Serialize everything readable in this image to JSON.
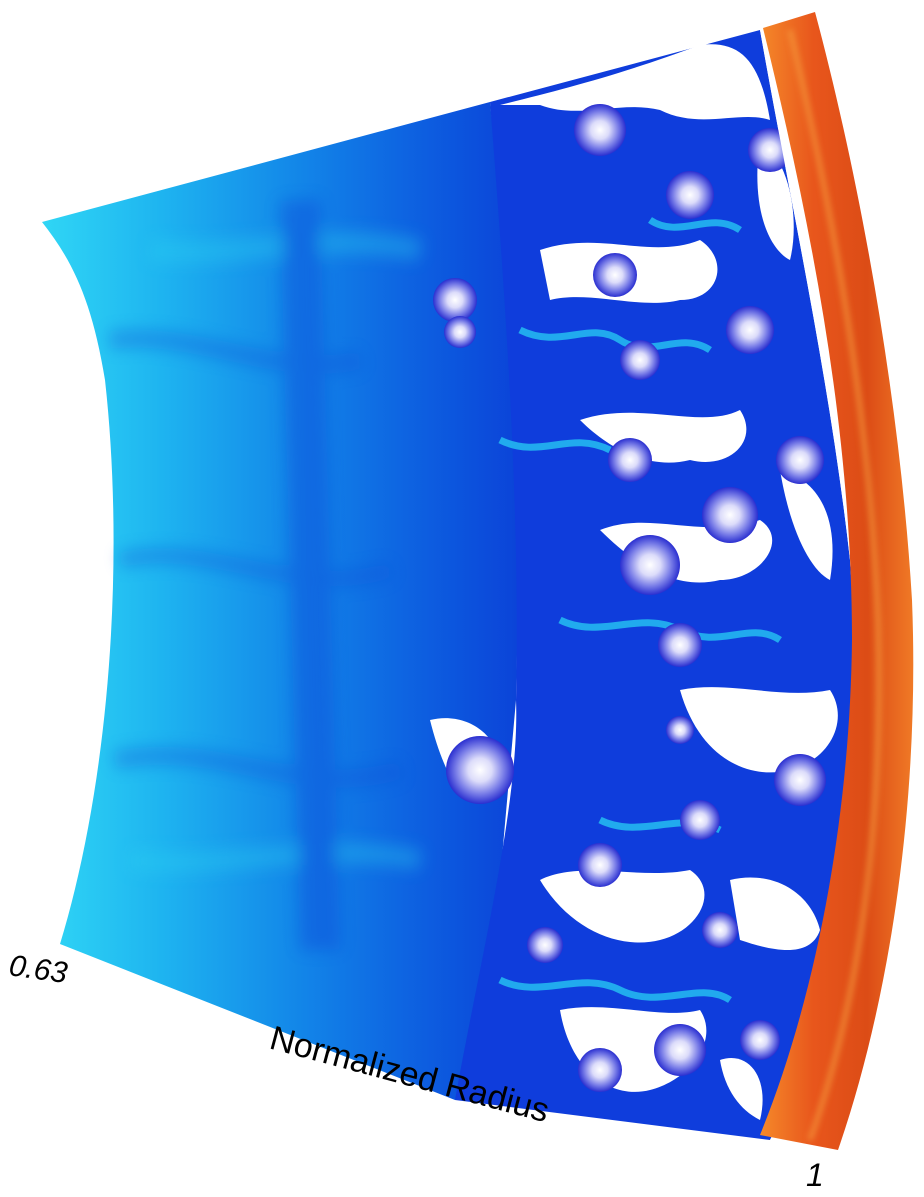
{
  "axis": {
    "title": "Normalized Radius",
    "min_label": "0.63",
    "max_label": "1"
  },
  "colors": {
    "inner_cyan": "#22c8f0",
    "mid_blue": "#1478e6",
    "deep_blue": "#0a2fd6",
    "vortex_violet": "#7a7ce6",
    "void_white": "#ffffff",
    "shell_orange": "#e2521a",
    "shell_orange_light": "#f27a24"
  }
}
